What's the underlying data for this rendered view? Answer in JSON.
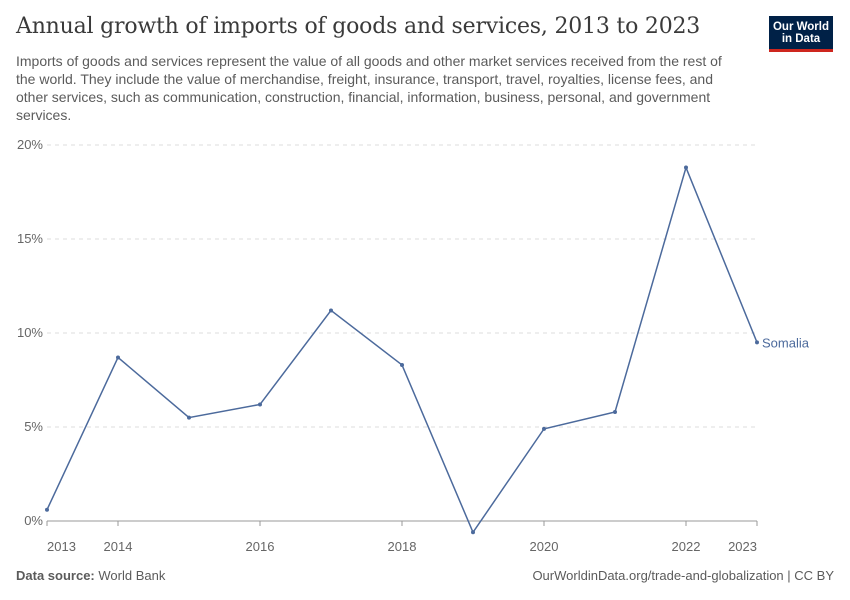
{
  "header": {
    "title": "Annual growth of imports of goods and services, 2013 to 2023",
    "subtitle": "Imports of goods and services represent the value of all goods and other market services received from the rest of the world. They include the value of merchandise, freight, insurance, transport, travel, royalties, license fees, and other services, such as communication, construction, financial, information, business, personal, and government services."
  },
  "logo": {
    "line1": "Our World",
    "line2": "in Data",
    "bg_color": "#002147",
    "accent_color": "#ce261e"
  },
  "footer": {
    "source_label": "Data source:",
    "source_value": "World Bank",
    "url_license": "OurWorldinData.org/trade-and-globalization | CC BY"
  },
  "chart_data": {
    "type": "line",
    "title": "Annual growth of imports of goods and services, 2013 to 2023",
    "xlabel": "",
    "ylabel": "",
    "xlim": [
      2013,
      2023
    ],
    "ylim": [
      0,
      20
    ],
    "y_ticks": [
      0,
      5,
      10,
      15,
      20
    ],
    "y_tick_labels": [
      "0%",
      "5%",
      "10%",
      "15%",
      "20%"
    ],
    "x_ticks": [
      2013,
      2014,
      2016,
      2018,
      2020,
      2022,
      2023
    ],
    "x_tick_labels": [
      "2013",
      "2014",
      "2016",
      "2018",
      "2020",
      "2022",
      "2023"
    ],
    "grid": "horizontal-dashed",
    "series": [
      {
        "name": "Somalia",
        "color": "#4c6a9c",
        "x": [
          2013,
          2014,
          2015,
          2016,
          2017,
          2018,
          2019,
          2020,
          2021,
          2022,
          2023
        ],
        "values": [
          0.6,
          8.7,
          5.5,
          6.2,
          11.2,
          8.3,
          -0.6,
          4.9,
          5.8,
          18.8,
          9.5
        ]
      }
    ]
  }
}
